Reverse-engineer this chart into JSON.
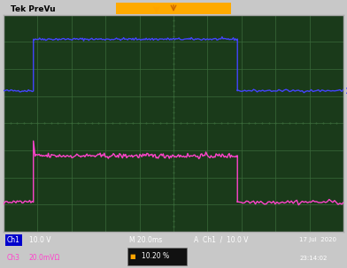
{
  "bg_color": "#1a1a2e",
  "screen_bg": "#1a3a1a",
  "grid_color": "#3a6a3a",
  "border_color": "#aaaaaa",
  "ch1_color": "#4444ff",
  "ch3_color": "#ff44cc",
  "title_text": "Tek PreVu",
  "ch1_label": "Ch1",
  "ch1_scale": "10.0 V",
  "ch3_label": "Ch3",
  "ch3_scale": "20.0mVΩ",
  "timebase": "M 20.0ms",
  "trigger": "A  Ch1  /  10.0 V",
  "date": "17 Jul  2020",
  "time": "23:14:02",
  "duty": "10.20 %",
  "figsize": [
    3.92,
    3.03
  ],
  "dpi": 100
}
